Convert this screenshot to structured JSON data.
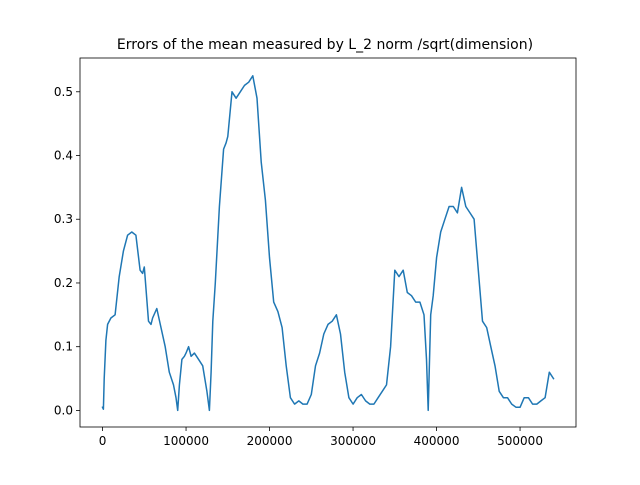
{
  "chart_data": {
    "type": "line",
    "title": "Errors of the mean measured by L_2 norm /sqrt(dimension)",
    "xlabel": "",
    "ylabel": "",
    "xlim": [
      -27000,
      567000
    ],
    "ylim": [
      -0.026,
      0.553
    ],
    "grid": false,
    "x_ticks": [
      0,
      100000,
      200000,
      300000,
      400000,
      500000
    ],
    "x_tick_labels": [
      "0",
      "100000",
      "200000",
      "300000",
      "400000",
      "500000"
    ],
    "y_ticks": [
      0.0,
      0.1,
      0.2,
      0.3,
      0.4,
      0.5
    ],
    "y_tick_labels": [
      "0.0",
      "0.1",
      "0.2",
      "0.3",
      "0.4",
      "0.5"
    ],
    "series": [
      {
        "name": "",
        "color": "#1f77b4",
        "x": [
          0,
          1000,
          2000,
          4000,
          6000,
          10000,
          15000,
          20000,
          25000,
          30000,
          35000,
          40000,
          45000,
          48000,
          50000,
          55000,
          58000,
          60000,
          65000,
          70000,
          75000,
          80000,
          85000,
          88000,
          90000,
          92000,
          95000,
          98000,
          100000,
          103000,
          106000,
          110000,
          115000,
          120000,
          125000,
          128000,
          130000,
          132000,
          135000,
          140000,
          145000,
          148000,
          150000,
          155000,
          160000,
          165000,
          170000,
          175000,
          180000,
          185000,
          190000,
          195000,
          200000,
          205000,
          210000,
          215000,
          220000,
          225000,
          230000,
          235000,
          240000,
          245000,
          250000,
          255000,
          260000,
          265000,
          270000,
          275000,
          280000,
          285000,
          290000,
          295000,
          300000,
          305000,
          310000,
          315000,
          320000,
          325000,
          330000,
          335000,
          340000,
          345000,
          350000,
          355000,
          360000,
          365000,
          370000,
          375000,
          380000,
          385000,
          388000,
          390000,
          393000,
          396000,
          400000,
          405000,
          410000,
          415000,
          420000,
          425000,
          430000,
          435000,
          440000,
          445000,
          450000,
          455000,
          460000,
          465000,
          470000,
          475000,
          480000,
          485000,
          490000,
          495000,
          500000,
          505000,
          510000,
          515000,
          520000,
          525000,
          530000,
          535000,
          540000
        ],
        "y": [
          0.005,
          0.002,
          0.05,
          0.11,
          0.135,
          0.145,
          0.15,
          0.21,
          0.25,
          0.275,
          0.28,
          0.275,
          0.22,
          0.215,
          0.225,
          0.14,
          0.135,
          0.145,
          0.16,
          0.13,
          0.1,
          0.06,
          0.04,
          0.02,
          0.0,
          0.04,
          0.08,
          0.085,
          0.09,
          0.1,
          0.085,
          0.09,
          0.08,
          0.07,
          0.03,
          0.0,
          0.06,
          0.14,
          0.2,
          0.32,
          0.41,
          0.42,
          0.43,
          0.5,
          0.49,
          0.5,
          0.51,
          0.515,
          0.525,
          0.49,
          0.39,
          0.33,
          0.24,
          0.17,
          0.155,
          0.13,
          0.07,
          0.02,
          0.01,
          0.015,
          0.01,
          0.01,
          0.025,
          0.07,
          0.09,
          0.12,
          0.135,
          0.14,
          0.15,
          0.12,
          0.06,
          0.02,
          0.01,
          0.02,
          0.025,
          0.015,
          0.01,
          0.01,
          0.02,
          0.03,
          0.04,
          0.1,
          0.22,
          0.21,
          0.22,
          0.185,
          0.18,
          0.17,
          0.17,
          0.15,
          0.08,
          0.0,
          0.15,
          0.18,
          0.24,
          0.28,
          0.3,
          0.32,
          0.32,
          0.31,
          0.35,
          0.32,
          0.31,
          0.3,
          0.22,
          0.14,
          0.13,
          0.1,
          0.07,
          0.03,
          0.02,
          0.02,
          0.01,
          0.005,
          0.005,
          0.02,
          0.02,
          0.01,
          0.01,
          0.015,
          0.02,
          0.06,
          0.05
        ]
      }
    ]
  }
}
